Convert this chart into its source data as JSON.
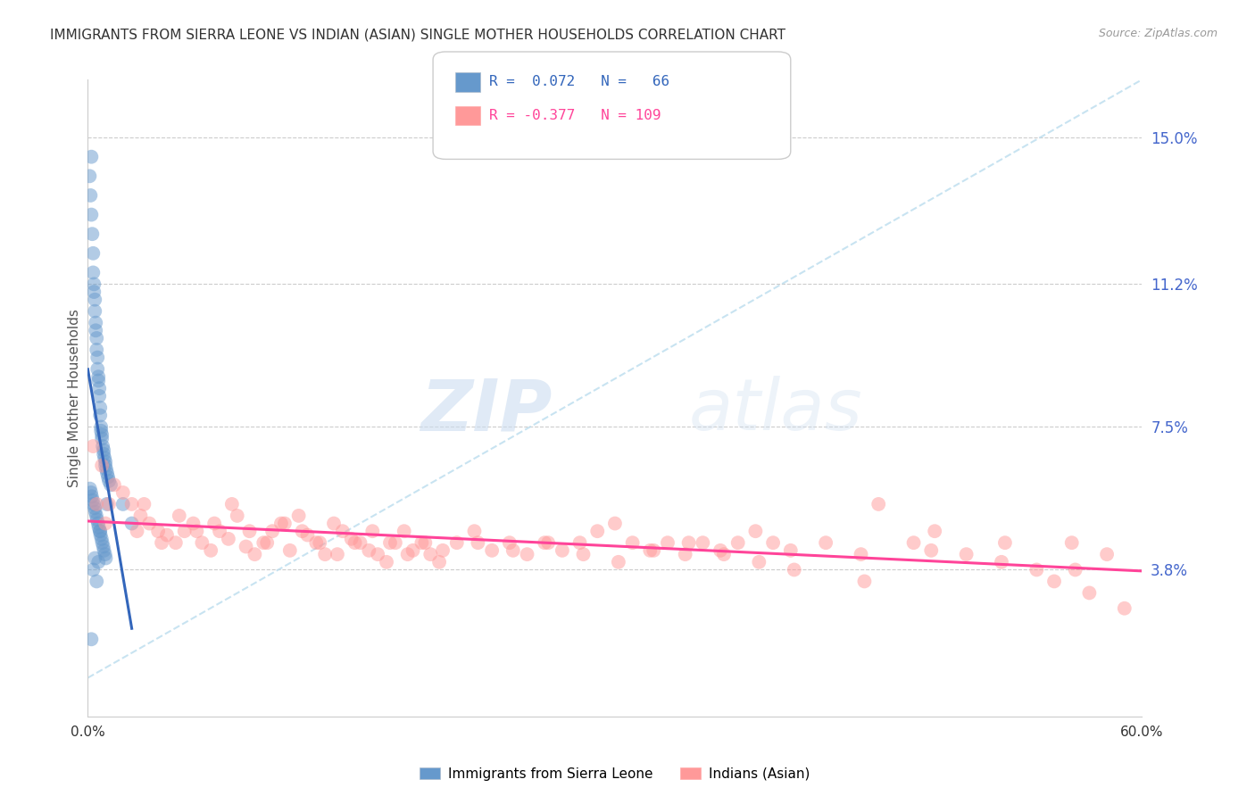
{
  "title": "IMMIGRANTS FROM SIERRA LEONE VS INDIAN (ASIAN) SINGLE MOTHER HOUSEHOLDS CORRELATION CHART",
  "source": "Source: ZipAtlas.com",
  "ylabel": "Single Mother Households",
  "y_tick_labels": [
    "15.0%",
    "11.2%",
    "7.5%",
    "3.8%"
  ],
  "y_tick_vals": [
    15.0,
    11.2,
    7.5,
    3.8
  ],
  "color_blue": "#6699CC",
  "color_pink": "#FF9999",
  "color_blue_line": "#3366BB",
  "color_pink_line": "#FF4499",
  "color_dashed": "#BBDDEE",
  "legend_label1": "Immigrants from Sierra Leone",
  "legend_label2": "Indians (Asian)",
  "title_color": "#333333",
  "tick_color_right": "#4466CC",
  "background_color": "#FFFFFF",
  "blue_scatter_x": [
    0.1,
    0.15,
    0.2,
    0.2,
    0.25,
    0.3,
    0.3,
    0.35,
    0.35,
    0.4,
    0.4,
    0.45,
    0.45,
    0.5,
    0.5,
    0.55,
    0.55,
    0.6,
    0.6,
    0.65,
    0.65,
    0.7,
    0.7,
    0.75,
    0.75,
    0.8,
    0.8,
    0.85,
    0.9,
    0.9,
    0.95,
    1.0,
    1.0,
    1.05,
    1.1,
    1.15,
    1.2,
    1.3,
    0.12,
    0.18,
    0.22,
    0.28,
    0.32,
    0.38,
    0.42,
    0.48,
    0.52,
    0.58,
    0.62,
    0.68,
    0.72,
    0.78,
    0.82,
    0.88,
    0.92,
    0.98,
    1.02,
    1.08,
    2.0,
    2.5,
    0.5,
    0.6,
    0.7,
    0.3,
    0.4,
    0.2
  ],
  "blue_scatter_y": [
    14.0,
    13.5,
    14.5,
    13.0,
    12.5,
    12.0,
    11.5,
    11.2,
    11.0,
    10.8,
    10.5,
    10.2,
    10.0,
    9.8,
    9.5,
    9.3,
    9.0,
    8.8,
    8.7,
    8.5,
    8.3,
    8.0,
    7.8,
    7.5,
    7.4,
    7.3,
    7.2,
    7.0,
    6.9,
    6.8,
    6.7,
    6.6,
    6.5,
    6.4,
    6.3,
    6.2,
    6.1,
    6.0,
    5.9,
    5.8,
    5.7,
    5.6,
    5.5,
    5.4,
    5.3,
    5.2,
    5.1,
    5.0,
    4.9,
    4.8,
    4.7,
    4.6,
    4.5,
    4.4,
    4.3,
    4.2,
    4.1,
    5.5,
    5.5,
    5.0,
    3.5,
    4.0,
    4.8,
    3.8,
    4.1,
    2.0
  ],
  "pink_scatter_x": [
    0.5,
    1.0,
    1.5,
    2.0,
    2.5,
    3.0,
    3.5,
    4.0,
    4.5,
    5.0,
    5.5,
    6.0,
    6.5,
    7.0,
    7.5,
    8.0,
    8.5,
    9.0,
    9.5,
    10.0,
    10.5,
    11.0,
    11.5,
    12.0,
    12.5,
    13.0,
    13.5,
    14.0,
    14.5,
    15.0,
    15.5,
    16.0,
    16.5,
    17.0,
    17.5,
    18.0,
    18.5,
    19.0,
    19.5,
    20.0,
    21.0,
    22.0,
    23.0,
    24.0,
    25.0,
    26.0,
    27.0,
    28.0,
    29.0,
    30.0,
    31.0,
    32.0,
    33.0,
    34.0,
    35.0,
    36.0,
    37.0,
    38.0,
    39.0,
    40.0,
    42.0,
    44.0,
    45.0,
    47.0,
    48.0,
    50.0,
    52.0,
    54.0,
    55.0,
    56.0,
    57.0,
    58.0,
    59.0,
    0.3,
    0.8,
    1.2,
    2.8,
    3.2,
    4.2,
    5.2,
    6.2,
    7.2,
    8.2,
    9.2,
    10.2,
    11.2,
    12.2,
    13.2,
    14.2,
    15.2,
    16.2,
    17.2,
    18.2,
    19.2,
    20.2,
    22.2,
    24.2,
    26.2,
    28.2,
    30.2,
    32.2,
    34.2,
    36.2,
    38.2,
    40.2,
    44.2,
    48.2,
    52.2,
    56.2
  ],
  "pink_scatter_y": [
    5.5,
    5.0,
    6.0,
    5.8,
    5.5,
    5.2,
    5.0,
    4.8,
    4.7,
    4.5,
    4.8,
    5.0,
    4.5,
    4.3,
    4.8,
    4.6,
    5.2,
    4.4,
    4.2,
    4.5,
    4.8,
    5.0,
    4.3,
    5.2,
    4.7,
    4.5,
    4.2,
    5.0,
    4.8,
    4.6,
    4.5,
    4.3,
    4.2,
    4.0,
    4.5,
    4.8,
    4.3,
    4.5,
    4.2,
    4.0,
    4.5,
    4.8,
    4.3,
    4.5,
    4.2,
    4.5,
    4.3,
    4.5,
    4.8,
    5.0,
    4.5,
    4.3,
    4.5,
    4.2,
    4.5,
    4.3,
    4.5,
    4.8,
    4.5,
    4.3,
    4.5,
    4.2,
    5.5,
    4.5,
    4.3,
    4.2,
    4.0,
    3.8,
    3.5,
    4.5,
    3.2,
    4.2,
    2.8,
    7.0,
    6.5,
    5.5,
    4.8,
    5.5,
    4.5,
    5.2,
    4.8,
    5.0,
    5.5,
    4.8,
    4.5,
    5.0,
    4.8,
    4.5,
    4.2,
    4.5,
    4.8,
    4.5,
    4.2,
    4.5,
    4.3,
    4.5,
    4.3,
    4.5,
    4.2,
    4.0,
    4.3,
    4.5,
    4.2,
    4.0,
    3.8,
    3.5,
    4.8,
    4.5,
    3.8
  ]
}
